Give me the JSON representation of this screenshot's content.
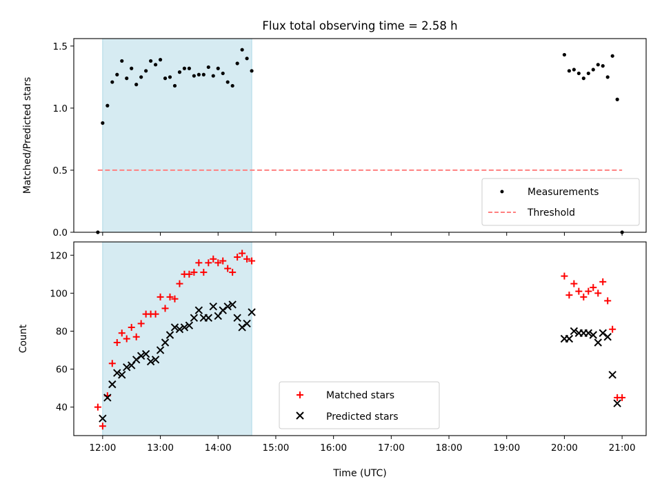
{
  "chart_data": [
    {
      "type": "scatter",
      "title": "Flux total observing time = 2.58 h",
      "xlabel": "",
      "ylabel": "Matched/Predicted stars",
      "xlim": [
        "11:30",
        "21:25"
      ],
      "ylim": [
        0,
        1.56
      ],
      "yticks": [
        0.0,
        0.5,
        1.0,
        1.5
      ],
      "ytick_labels": [
        "0.0",
        "0.5",
        "1.0",
        "1.5"
      ],
      "shaded_span": {
        "x_start": "12:00",
        "x_end": "14:35",
        "color": "#add8e6"
      },
      "threshold": {
        "name": "Threshold",
        "y": 0.5,
        "x_start": "11:55",
        "x_end": "21:00",
        "color": "#ff7f7f",
        "style": "dashed"
      },
      "legend": {
        "position": "lower right",
        "entries": [
          "Measurements",
          "Threshold"
        ]
      },
      "series": [
        {
          "name": "Measurements",
          "marker": "dot",
          "color": "#000000",
          "points": [
            [
              "11:55",
              0.0
            ],
            [
              "12:00",
              0.88
            ],
            [
              "12:05",
              1.02
            ],
            [
              "12:10",
              1.21
            ],
            [
              "12:15",
              1.27
            ],
            [
              "12:20",
              1.38
            ],
            [
              "12:25",
              1.24
            ],
            [
              "12:30",
              1.32
            ],
            [
              "12:35",
              1.19
            ],
            [
              "12:40",
              1.25
            ],
            [
              "12:45",
              1.3
            ],
            [
              "12:50",
              1.38
            ],
            [
              "12:55",
              1.35
            ],
            [
              "13:00",
              1.39
            ],
            [
              "13:05",
              1.24
            ],
            [
              "13:10",
              1.25
            ],
            [
              "13:15",
              1.18
            ],
            [
              "13:20",
              1.29
            ],
            [
              "13:25",
              1.32
            ],
            [
              "13:30",
              1.32
            ],
            [
              "13:35",
              1.26
            ],
            [
              "13:40",
              1.27
            ],
            [
              "13:45",
              1.27
            ],
            [
              "13:50",
              1.33
            ],
            [
              "13:55",
              1.26
            ],
            [
              "14:00",
              1.32
            ],
            [
              "14:05",
              1.28
            ],
            [
              "14:10",
              1.21
            ],
            [
              "14:15",
              1.18
            ],
            [
              "14:20",
              1.36
            ],
            [
              "14:25",
              1.47
            ],
            [
              "14:30",
              1.4
            ],
            [
              "14:35",
              1.3
            ],
            [
              "20:00",
              1.43
            ],
            [
              "20:05",
              1.3
            ],
            [
              "20:10",
              1.31
            ],
            [
              "20:15",
              1.28
            ],
            [
              "20:20",
              1.24
            ],
            [
              "20:25",
              1.28
            ],
            [
              "20:30",
              1.31
            ],
            [
              "20:35",
              1.35
            ],
            [
              "20:40",
              1.34
            ],
            [
              "20:45",
              1.25
            ],
            [
              "20:50",
              1.42
            ],
            [
              "20:55",
              1.07
            ],
            [
              "21:00",
              0.0
            ]
          ]
        }
      ]
    },
    {
      "type": "scatter",
      "title": "",
      "xlabel": "Time (UTC)",
      "ylabel": "Count",
      "xlim": [
        "11:30",
        "21:25"
      ],
      "ylim": [
        25,
        127
      ],
      "yticks": [
        40,
        60,
        80,
        100,
        120
      ],
      "xticks": [
        "12:00",
        "13:00",
        "14:00",
        "15:00",
        "16:00",
        "17:00",
        "18:00",
        "19:00",
        "20:00",
        "21:00"
      ],
      "shaded_span": {
        "x_start": "12:00",
        "x_end": "14:35",
        "color": "#add8e6"
      },
      "legend": {
        "position": "lower center",
        "entries": [
          "Matched stars",
          "Predicted stars"
        ]
      },
      "series": [
        {
          "name": "Matched stars",
          "marker": "plus",
          "color": "#ff0000",
          "points": [
            [
              "11:55",
              40
            ],
            [
              "12:00",
              30
            ],
            [
              "12:05",
              46
            ],
            [
              "12:10",
              63
            ],
            [
              "12:15",
              74
            ],
            [
              "12:20",
              79
            ],
            [
              "12:25",
              76
            ],
            [
              "12:30",
              82
            ],
            [
              "12:35",
              77
            ],
            [
              "12:40",
              84
            ],
            [
              "12:45",
              89
            ],
            [
              "12:50",
              89
            ],
            [
              "12:55",
              89
            ],
            [
              "13:00",
              98
            ],
            [
              "13:05",
              92
            ],
            [
              "13:10",
              98
            ],
            [
              "13:15",
              97
            ],
            [
              "13:20",
              105
            ],
            [
              "13:25",
              110
            ],
            [
              "13:30",
              110
            ],
            [
              "13:35",
              111
            ],
            [
              "13:40",
              116
            ],
            [
              "13:45",
              111
            ],
            [
              "13:50",
              116
            ],
            [
              "13:55",
              118
            ],
            [
              "14:00",
              116
            ],
            [
              "14:05",
              117
            ],
            [
              "14:10",
              113
            ],
            [
              "14:15",
              111
            ],
            [
              "14:20",
              119
            ],
            [
              "14:25",
              121
            ],
            [
              "14:30",
              118
            ],
            [
              "14:35",
              117
            ],
            [
              "20:00",
              109
            ],
            [
              "20:05",
              99
            ],
            [
              "20:10",
              105
            ],
            [
              "20:15",
              101
            ],
            [
              "20:20",
              98
            ],
            [
              "20:25",
              101
            ],
            [
              "20:30",
              103
            ],
            [
              "20:35",
              100
            ],
            [
              "20:40",
              106
            ],
            [
              "20:45",
              96
            ],
            [
              "20:50",
              81
            ],
            [
              "20:55",
              45
            ],
            [
              "21:00",
              45
            ]
          ]
        },
        {
          "name": "Predicted stars",
          "marker": "x",
          "color": "#000000",
          "points": [
            [
              "12:00",
              34
            ],
            [
              "12:05",
              45
            ],
            [
              "12:10",
              52
            ],
            [
              "12:15",
              58
            ],
            [
              "12:20",
              57
            ],
            [
              "12:25",
              61
            ],
            [
              "12:30",
              62
            ],
            [
              "12:35",
              65
            ],
            [
              "12:40",
              67
            ],
            [
              "12:45",
              68
            ],
            [
              "12:50",
              64
            ],
            [
              "12:55",
              65
            ],
            [
              "13:00",
              70
            ],
            [
              "13:05",
              74
            ],
            [
              "13:10",
              78
            ],
            [
              "13:15",
              82
            ],
            [
              "13:20",
              81
            ],
            [
              "13:25",
              82
            ],
            [
              "13:30",
              83
            ],
            [
              "13:35",
              87
            ],
            [
              "13:40",
              91
            ],
            [
              "13:45",
              87
            ],
            [
              "13:50",
              87
            ],
            [
              "13:55",
              93
            ],
            [
              "14:00",
              88
            ],
            [
              "14:05",
              91
            ],
            [
              "14:10",
              93
            ],
            [
              "14:15",
              94
            ],
            [
              "14:20",
              87
            ],
            [
              "14:25",
              82
            ],
            [
              "14:30",
              84
            ],
            [
              "14:35",
              90
            ],
            [
              "20:00",
              76
            ],
            [
              "20:05",
              76
            ],
            [
              "20:10",
              80
            ],
            [
              "20:15",
              79
            ],
            [
              "20:20",
              79
            ],
            [
              "20:25",
              79
            ],
            [
              "20:30",
              78
            ],
            [
              "20:35",
              74
            ],
            [
              "20:40",
              79
            ],
            [
              "20:45",
              77
            ],
            [
              "20:50",
              57
            ],
            [
              "20:55",
              42
            ]
          ]
        }
      ]
    }
  ]
}
